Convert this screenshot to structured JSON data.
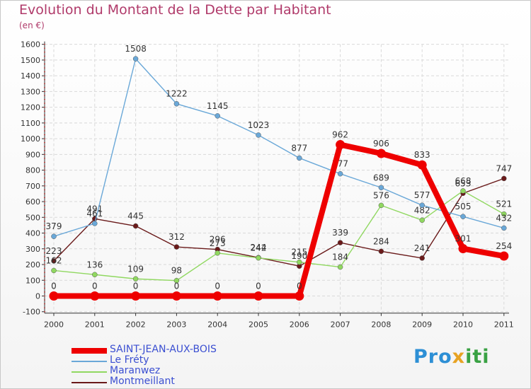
{
  "chart_data": {
    "type": "line",
    "title": "Evolution du Montant de la Dette par Habitant",
    "unit": "(en €)",
    "xlabel": "",
    "ylabel": "",
    "x": [
      "2000",
      "2001",
      "2002",
      "2003",
      "2004",
      "2005",
      "2006",
      "2007",
      "2008",
      "2009",
      "2010",
      "2011"
    ],
    "ylim": [
      -100,
      1600
    ],
    "yticks": [
      -100,
      0,
      100,
      200,
      300,
      400,
      500,
      600,
      700,
      800,
      900,
      1000,
      1100,
      1200,
      1300,
      1400,
      1500,
      1600
    ],
    "series": [
      {
        "name": "Montmeillant",
        "color": "#6a1a1a",
        "values": [
          223,
          491,
          445,
          312,
          296,
          244,
          190,
          339,
          284,
          241,
          653,
          747
        ],
        "labels": [
          "223",
          "491",
          "445",
          "312",
          "296",
          "244",
          "190",
          "339",
          "284",
          "241",
          "653",
          "747"
        ]
      },
      {
        "name": "Maranwez",
        "color": "#90d860",
        "values": [
          162,
          136,
          109,
          98,
          273,
          242,
          215,
          184,
          576,
          482,
          668,
          521
        ],
        "labels": [
          "162",
          "136",
          "109",
          "98",
          "273",
          "242",
          "215",
          "184",
          "576",
          "482",
          "668",
          "521"
        ]
      },
      {
        "name": "Le Fréty",
        "color": "#6aa8d8",
        "values": [
          379,
          461,
          1508,
          1222,
          1145,
          1023,
          877,
          777,
          689,
          577,
          505,
          432
        ],
        "labels": [
          "379",
          "461",
          "1508",
          "1222",
          "1145",
          "1023",
          "877",
          "777",
          "689",
          "577",
          "505",
          "432"
        ]
      },
      {
        "name": "SAINT-JEAN-AUX-BOIS",
        "color": "#ee0000",
        "values": [
          0,
          0,
          0,
          0,
          0,
          0,
          0,
          962,
          906,
          833,
          301,
          254
        ],
        "labels": [
          "0",
          "0",
          "0",
          "0",
          "0",
          "0",
          "0",
          "962",
          "906",
          "833",
          "301",
          "254"
        ]
      }
    ],
    "legend": [
      "SAINT-JEAN-AUX-BOIS",
      "Le Fréty",
      "Maranwez",
      "Montmeillant"
    ],
    "legend_position": "bottom-left"
  },
  "logo_text": "Proxiti"
}
